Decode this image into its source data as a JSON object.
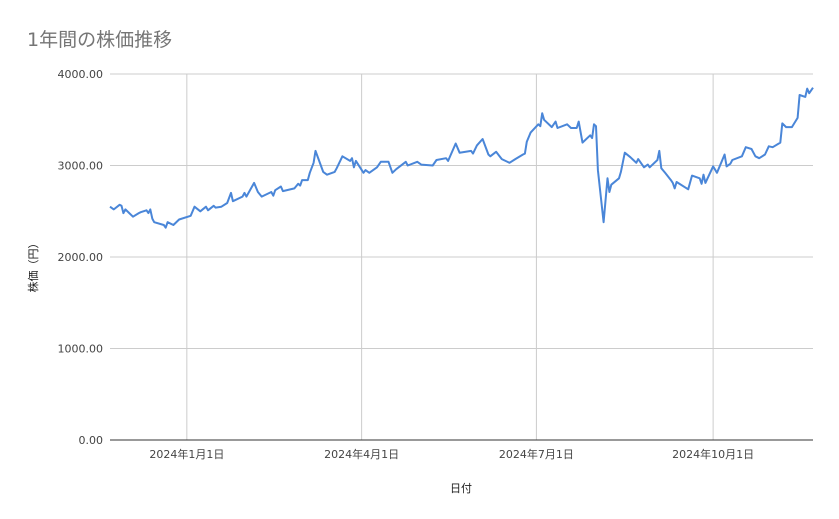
{
  "chart_data": {
    "type": "line",
    "title": "1年間の株価推移",
    "xlabel": "日付",
    "ylabel": "株価（円）",
    "ylim": [
      0,
      4000
    ],
    "xlim": [
      "2023-11-22",
      "2024-11-22"
    ],
    "yticks": [
      0,
      1000,
      2000,
      3000,
      4000
    ],
    "ytick_labels": [
      "0.00",
      "1000.00",
      "2000.00",
      "3000.00",
      "4000.00"
    ],
    "xticks": [
      "2024-01-01",
      "2024-04-01",
      "2024-07-01",
      "2024-10-01"
    ],
    "xtick_labels": [
      "2024年1月1日",
      "2024年4月1日",
      "2024年7月1日",
      "2024年10月1日"
    ],
    "grid": true,
    "line_color": "#4a86d8",
    "series": [
      {
        "x": [
          "2023-11-22",
          "2023-11-24",
          "2023-11-27",
          "2023-11-28",
          "2023-11-29",
          "2023-11-30",
          "2023-12-04",
          "2023-12-07",
          "2023-12-08",
          "2023-12-11",
          "2023-12-12",
          "2023-12-13",
          "2023-12-14",
          "2023-12-15",
          "2023-12-20",
          "2023-12-21",
          "2023-12-22",
          "2023-12-25",
          "2023-12-28",
          "2024-01-03",
          "2024-01-05",
          "2024-01-08",
          "2024-01-11",
          "2024-01-12",
          "2024-01-15",
          "2024-01-16",
          "2024-01-19",
          "2024-01-22",
          "2024-01-24",
          "2024-01-25",
          "2024-01-30",
          "2024-01-31",
          "2024-02-01",
          "2024-02-05",
          "2024-02-07",
          "2024-02-09",
          "2024-02-14",
          "2024-02-15",
          "2024-02-16",
          "2024-02-19",
          "2024-02-20",
          "2024-02-26",
          "2024-02-28",
          "2024-02-29",
          "2024-03-01",
          "2024-03-04",
          "2024-03-05",
          "2024-03-07",
          "2024-03-08",
          "2024-03-12",
          "2024-03-14",
          "2024-03-18",
          "2024-03-19",
          "2024-03-22",
          "2024-03-26",
          "2024-03-27",
          "2024-03-28",
          "2024-03-29",
          "2024-04-02",
          "2024-04-03",
          "2024-04-05",
          "2024-04-09",
          "2024-04-11",
          "2024-04-15",
          "2024-04-17",
          "2024-04-19",
          "2024-04-24",
          "2024-04-25",
          "2024-04-30",
          "2024-05-02",
          "2024-05-08",
          "2024-05-10",
          "2024-05-15",
          "2024-05-16",
          "2024-05-20",
          "2024-05-22",
          "2024-05-28",
          "2024-05-29",
          "2024-05-31",
          "2024-06-03",
          "2024-06-06",
          "2024-06-07",
          "2024-06-10",
          "2024-06-13",
          "2024-06-17",
          "2024-06-20",
          "2024-06-24",
          "2024-06-25",
          "2024-06-26",
          "2024-06-28",
          "2024-07-02",
          "2024-07-03",
          "2024-07-04",
          "2024-07-05",
          "2024-07-09",
          "2024-07-11",
          "2024-07-12",
          "2024-07-17",
          "2024-07-19",
          "2024-07-22",
          "2024-07-23",
          "2024-07-25",
          "2024-07-29",
          "2024-07-30",
          "2024-07-31",
          "2024-08-01",
          "2024-08-02",
          "2024-08-05",
          "2024-08-07",
          "2024-08-08",
          "2024-08-09",
          "2024-08-13",
          "2024-08-14",
          "2024-08-16",
          "2024-08-19",
          "2024-08-20",
          "2024-08-22",
          "2024-08-23",
          "2024-08-26",
          "2024-08-28",
          "2024-08-29",
          "2024-09-02",
          "2024-09-03",
          "2024-09-04",
          "2024-09-06",
          "2024-09-09",
          "2024-09-10",
          "2024-09-11",
          "2024-09-12",
          "2024-09-18",
          "2024-09-20",
          "2024-09-24",
          "2024-09-25",
          "2024-09-26",
          "2024-09-27",
          "2024-10-01",
          "2024-10-03",
          "2024-10-07",
          "2024-10-08",
          "2024-10-10",
          "2024-10-11",
          "2024-10-16",
          "2024-10-18",
          "2024-10-21",
          "2024-10-23",
          "2024-10-25",
          "2024-10-28",
          "2024-10-30",
          "2024-11-01",
          "2024-11-05",
          "2024-11-06",
          "2024-11-08",
          "2024-11-11",
          "2024-11-14",
          "2024-11-15",
          "2024-11-18",
          "2024-11-19",
          "2024-11-20",
          "2024-11-22"
        ],
        "values": [
          2550,
          2520,
          2570,
          2560,
          2480,
          2520,
          2440,
          2480,
          2490,
          2510,
          2480,
          2520,
          2420,
          2380,
          2350,
          2320,
          2380,
          2350,
          2410,
          2450,
          2550,
          2500,
          2550,
          2510,
          2560,
          2540,
          2550,
          2590,
          2700,
          2610,
          2660,
          2700,
          2660,
          2810,
          2710,
          2660,
          2710,
          2670,
          2730,
          2770,
          2720,
          2750,
          2800,
          2780,
          2840,
          2840,
          2920,
          3030,
          3160,
          2930,
          2900,
          2930,
          2970,
          3100,
          3050,
          3080,
          2980,
          3050,
          2920,
          2950,
          2920,
          2980,
          3040,
          3040,
          2920,
          2960,
          3040,
          3000,
          3040,
          3010,
          3000,
          3060,
          3080,
          3050,
          3240,
          3140,
          3160,
          3130,
          3220,
          3290,
          3120,
          3100,
          3150,
          3070,
          3030,
          3070,
          3120,
          3130,
          3260,
          3360,
          3450,
          3430,
          3570,
          3500,
          3420,
          3480,
          3410,
          3450,
          3410,
          3410,
          3480,
          3250,
          3330,
          3300,
          3450,
          3430,
          2950,
          2380,
          2860,
          2710,
          2790,
          2860,
          2930,
          3140,
          3090,
          3070,
          3030,
          3070,
          2980,
          3010,
          2980,
          3060,
          3160,
          2970,
          2920,
          2840,
          2810,
          2750,
          2820,
          2740,
          2890,
          2860,
          2800,
          2900,
          2810,
          2990,
          2920,
          3120,
          2990,
          3020,
          3060,
          3100,
          3200,
          3180,
          3100,
          3080,
          3120,
          3210,
          3200,
          3250,
          3460,
          3420,
          3420,
          3520,
          3770,
          3750,
          3840,
          3790,
          3850
        ]
      }
    ]
  }
}
